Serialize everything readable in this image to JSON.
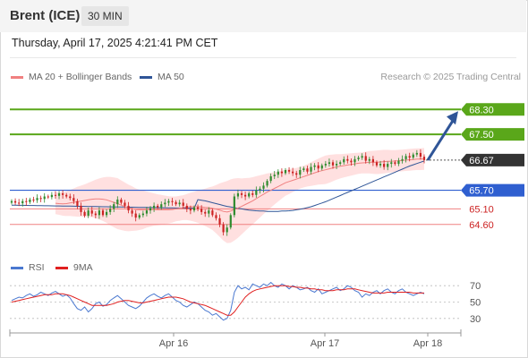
{
  "header": {
    "title": "Brent (ICE)",
    "timeframe": "30 MIN"
  },
  "datetime": "Thursday, April 17, 2025 4:21:41 PM CET",
  "legend": {
    "ma20": "MA 20 + Bollinger Bands",
    "ma50": "MA 50",
    "rsi": "RSI",
    "rsi_ma": "9MA",
    "credit": "Research © 2025 Trading Central"
  },
  "colors": {
    "up": "#2e8b2e",
    "down": "#cc2222",
    "ma20": "#f08080",
    "bollinger_fill": "#ffd6d6",
    "ma50": "#2f5597",
    "pivot": "#2f5fd0",
    "resistance": "#5aa71a",
    "support": "#f08080",
    "current": "#333333",
    "rsi": "#4a78d0",
    "rsi_ma": "#e02020",
    "arrow": "#2f5597"
  },
  "chart_data": [
    {
      "type": "candlestick",
      "x_ticks": [
        "Apr 16",
        "Apr 17",
        "Apr 18"
      ],
      "ylim": [
        63.7,
        69.0
      ],
      "current_price": 66.67,
      "levels": [
        {
          "value": 68.3,
          "label": "68.30",
          "kind": "resistance"
        },
        {
          "value": 67.5,
          "label": "67.50",
          "kind": "resistance"
        },
        {
          "value": 66.67,
          "label": "66.67",
          "kind": "current"
        },
        {
          "value": 65.7,
          "label": "65.70",
          "kind": "pivot"
        },
        {
          "value": 65.1,
          "label": "65.10",
          "kind": "support"
        },
        {
          "value": 64.6,
          "label": "64.60",
          "kind": "support"
        }
      ],
      "arrow": {
        "from": 66.67,
        "to": 68.3
      },
      "closes": [
        65.35,
        65.3,
        65.28,
        65.35,
        65.32,
        65.4,
        65.38,
        65.45,
        65.42,
        65.5,
        65.48,
        65.55,
        65.52,
        65.6,
        65.55,
        65.5,
        65.45,
        65.35,
        65.2,
        65.0,
        64.88,
        65.05,
        64.95,
        64.9,
        65.05,
        64.9,
        65.0,
        65.1,
        65.25,
        65.4,
        65.3,
        65.2,
        65.05,
        64.95,
        64.82,
        64.9,
        64.95,
        65.05,
        65.12,
        65.2,
        65.15,
        65.25,
        65.3,
        65.35,
        65.32,
        65.25,
        65.3,
        65.2,
        65.1,
        65.05,
        65.15,
        65.1,
        65.0,
        64.95,
        65.05,
        64.9,
        64.8,
        64.6,
        64.35,
        64.5,
        64.9,
        65.5,
        65.6,
        65.55,
        65.5,
        65.6,
        65.55,
        65.7,
        65.75,
        65.85,
        66.0,
        66.15,
        66.2,
        66.3,
        66.25,
        66.35,
        66.3,
        66.25,
        66.2,
        66.35,
        66.4,
        66.3,
        66.45,
        66.5,
        66.4,
        66.5,
        66.55,
        66.6,
        66.5,
        66.55,
        66.6,
        66.7,
        66.65,
        66.6,
        66.7,
        66.75,
        66.8,
        66.65,
        66.7,
        66.6,
        66.5,
        66.55,
        66.45,
        66.55,
        66.6,
        66.55,
        66.65,
        66.7,
        66.8,
        66.75,
        66.85,
        66.9,
        66.78,
        66.67
      ],
      "ma20": [
        65.28,
        65.27,
        65.26,
        65.27,
        65.29,
        65.31,
        65.33,
        65.35,
        65.37,
        65.39,
        65.41,
        65.42,
        65.42,
        65.41,
        65.39,
        65.35,
        65.31,
        65.27,
        65.22,
        65.17,
        65.13,
        65.11,
        65.08,
        65.07,
        65.07,
        65.08,
        65.08,
        65.08,
        65.07,
        65.07,
        65.07,
        65.07,
        65.08,
        65.1,
        65.12,
        65.14,
        65.16,
        65.17,
        65.17,
        65.17,
        65.16,
        65.15,
        65.14,
        65.12,
        65.09,
        65.06,
        65.02,
        65.0,
        65.03,
        65.08,
        65.13,
        65.18,
        65.24,
        65.3,
        65.36,
        65.43,
        65.5,
        65.57,
        65.64,
        65.7,
        65.76,
        65.82,
        65.88,
        65.94,
        65.98,
        66.02,
        66.06,
        66.1,
        66.14,
        66.18,
        66.22,
        66.26,
        66.3,
        66.33,
        66.36,
        66.39,
        66.42,
        66.45,
        66.47,
        66.49,
        66.51,
        66.53,
        66.55,
        66.57,
        66.58,
        66.59,
        66.6,
        66.6,
        66.6,
        66.61,
        66.62,
        66.63,
        66.63,
        66.64,
        66.65,
        66.66,
        66.67,
        66.68,
        66.69,
        66.7,
        66.7,
        66.71
      ],
      "ma50": [
        65.4,
        65.38,
        65.36,
        65.33,
        65.3,
        65.27,
        65.24,
        65.21,
        65.18,
        65.16,
        65.14,
        65.12,
        65.1,
        65.08,
        65.06,
        65.05,
        65.04,
        65.03,
        65.03,
        65.02,
        65.02,
        65.02,
        65.02,
        65.03,
        65.03,
        65.04,
        65.05,
        65.07,
        65.09,
        65.11,
        65.14,
        65.17,
        65.21,
        65.25,
        65.29,
        65.33,
        65.38,
        65.43,
        65.48,
        65.53,
        65.58,
        65.63,
        65.68,
        65.73,
        65.78,
        65.83,
        65.88,
        65.93,
        65.98,
        66.03,
        66.08,
        66.13,
        66.18,
        66.23,
        66.28,
        66.33,
        66.38,
        66.43,
        66.48,
        66.52,
        66.56,
        66.6,
        66.64
      ],
      "bollinger_width": [
        0.35,
        0.36,
        0.38,
        0.4,
        0.42,
        0.45,
        0.48,
        0.5,
        0.52,
        0.55,
        0.58,
        0.62,
        0.66,
        0.7,
        0.74,
        0.78,
        0.8,
        0.82,
        0.8,
        0.78,
        0.75,
        0.72,
        0.68,
        0.65,
        0.62,
        0.58,
        0.55,
        0.52,
        0.5,
        0.48,
        0.46,
        0.44,
        0.42,
        0.4,
        0.4,
        0.4,
        0.42,
        0.45,
        0.48,
        0.52,
        0.56,
        0.6,
        0.65,
        0.7,
        0.78,
        0.86,
        0.94,
        1.0,
        1.02,
        1.0,
        0.96,
        0.9,
        0.85,
        0.8,
        0.76,
        0.72,
        0.68,
        0.64,
        0.6,
        0.56,
        0.52,
        0.48,
        0.45,
        0.42,
        0.4,
        0.38,
        0.36,
        0.35,
        0.35,
        0.36,
        0.38,
        0.4,
        0.42,
        0.44,
        0.46,
        0.45,
        0.43,
        0.41,
        0.39,
        0.38,
        0.37,
        0.36,
        0.35,
        0.34,
        0.34,
        0.35,
        0.36,
        0.37,
        0.38,
        0.38,
        0.38,
        0.37,
        0.36,
        0.35,
        0.35,
        0.35,
        0.35,
        0.35,
        0.35,
        0.35,
        0.35,
        0.35
      ]
    },
    {
      "type": "line",
      "title": "RSI",
      "y_ticks": [
        30,
        50,
        70
      ],
      "ylim": [
        20,
        80
      ],
      "series": [
        {
          "name": "RSI",
          "values": [
            52,
            54,
            56,
            55,
            58,
            60,
            57,
            59,
            62,
            60,
            58,
            61,
            63,
            60,
            57,
            59,
            55,
            48,
            42,
            40,
            44,
            38,
            42,
            48,
            50,
            45,
            47,
            52,
            55,
            58,
            54,
            50,
            46,
            44,
            42,
            45,
            50,
            55,
            58,
            60,
            57,
            55,
            58,
            60,
            56,
            52,
            50,
            46,
            44,
            47,
            50,
            48,
            44,
            40,
            38,
            34,
            36,
            32,
            28,
            30,
            40,
            62,
            70,
            66,
            68,
            65,
            72,
            70,
            68,
            72,
            70,
            74,
            70,
            68,
            72,
            70,
            66,
            70,
            68,
            65,
            66,
            68,
            64,
            62,
            66,
            60,
            62,
            64,
            66,
            68,
            64,
            66,
            70,
            68,
            64,
            62,
            56,
            60,
            58,
            62,
            64,
            60,
            64,
            66,
            62,
            60,
            64,
            66,
            62,
            60,
            58,
            60,
            62,
            60
          ]
        },
        {
          "name": "9MA",
          "values": [
            50,
            51,
            52,
            53,
            54,
            55,
            56,
            57,
            58,
            59,
            59,
            59,
            60,
            60,
            60,
            59,
            58,
            56,
            54,
            52,
            50,
            48,
            46,
            46,
            46,
            46,
            46,
            47,
            48,
            50,
            51,
            52,
            52,
            51,
            50,
            49,
            49,
            50,
            51,
            52,
            53,
            54,
            55,
            56,
            56,
            56,
            55,
            54,
            52,
            50,
            49,
            48,
            47,
            46,
            44,
            42,
            40,
            38,
            36,
            34,
            34,
            38,
            44,
            50,
            56,
            60,
            63,
            65,
            66,
            67,
            68,
            69,
            70,
            70,
            70,
            70,
            69,
            69,
            68,
            68,
            67,
            67,
            66,
            66,
            65,
            65,
            64,
            64,
            64,
            65,
            65,
            65,
            66,
            66,
            66,
            65,
            64,
            63,
            62,
            61,
            61,
            61,
            61,
            62,
            62,
            62,
            62,
            62,
            62,
            62,
            61,
            61,
            61,
            61
          ]
        }
      ]
    }
  ]
}
